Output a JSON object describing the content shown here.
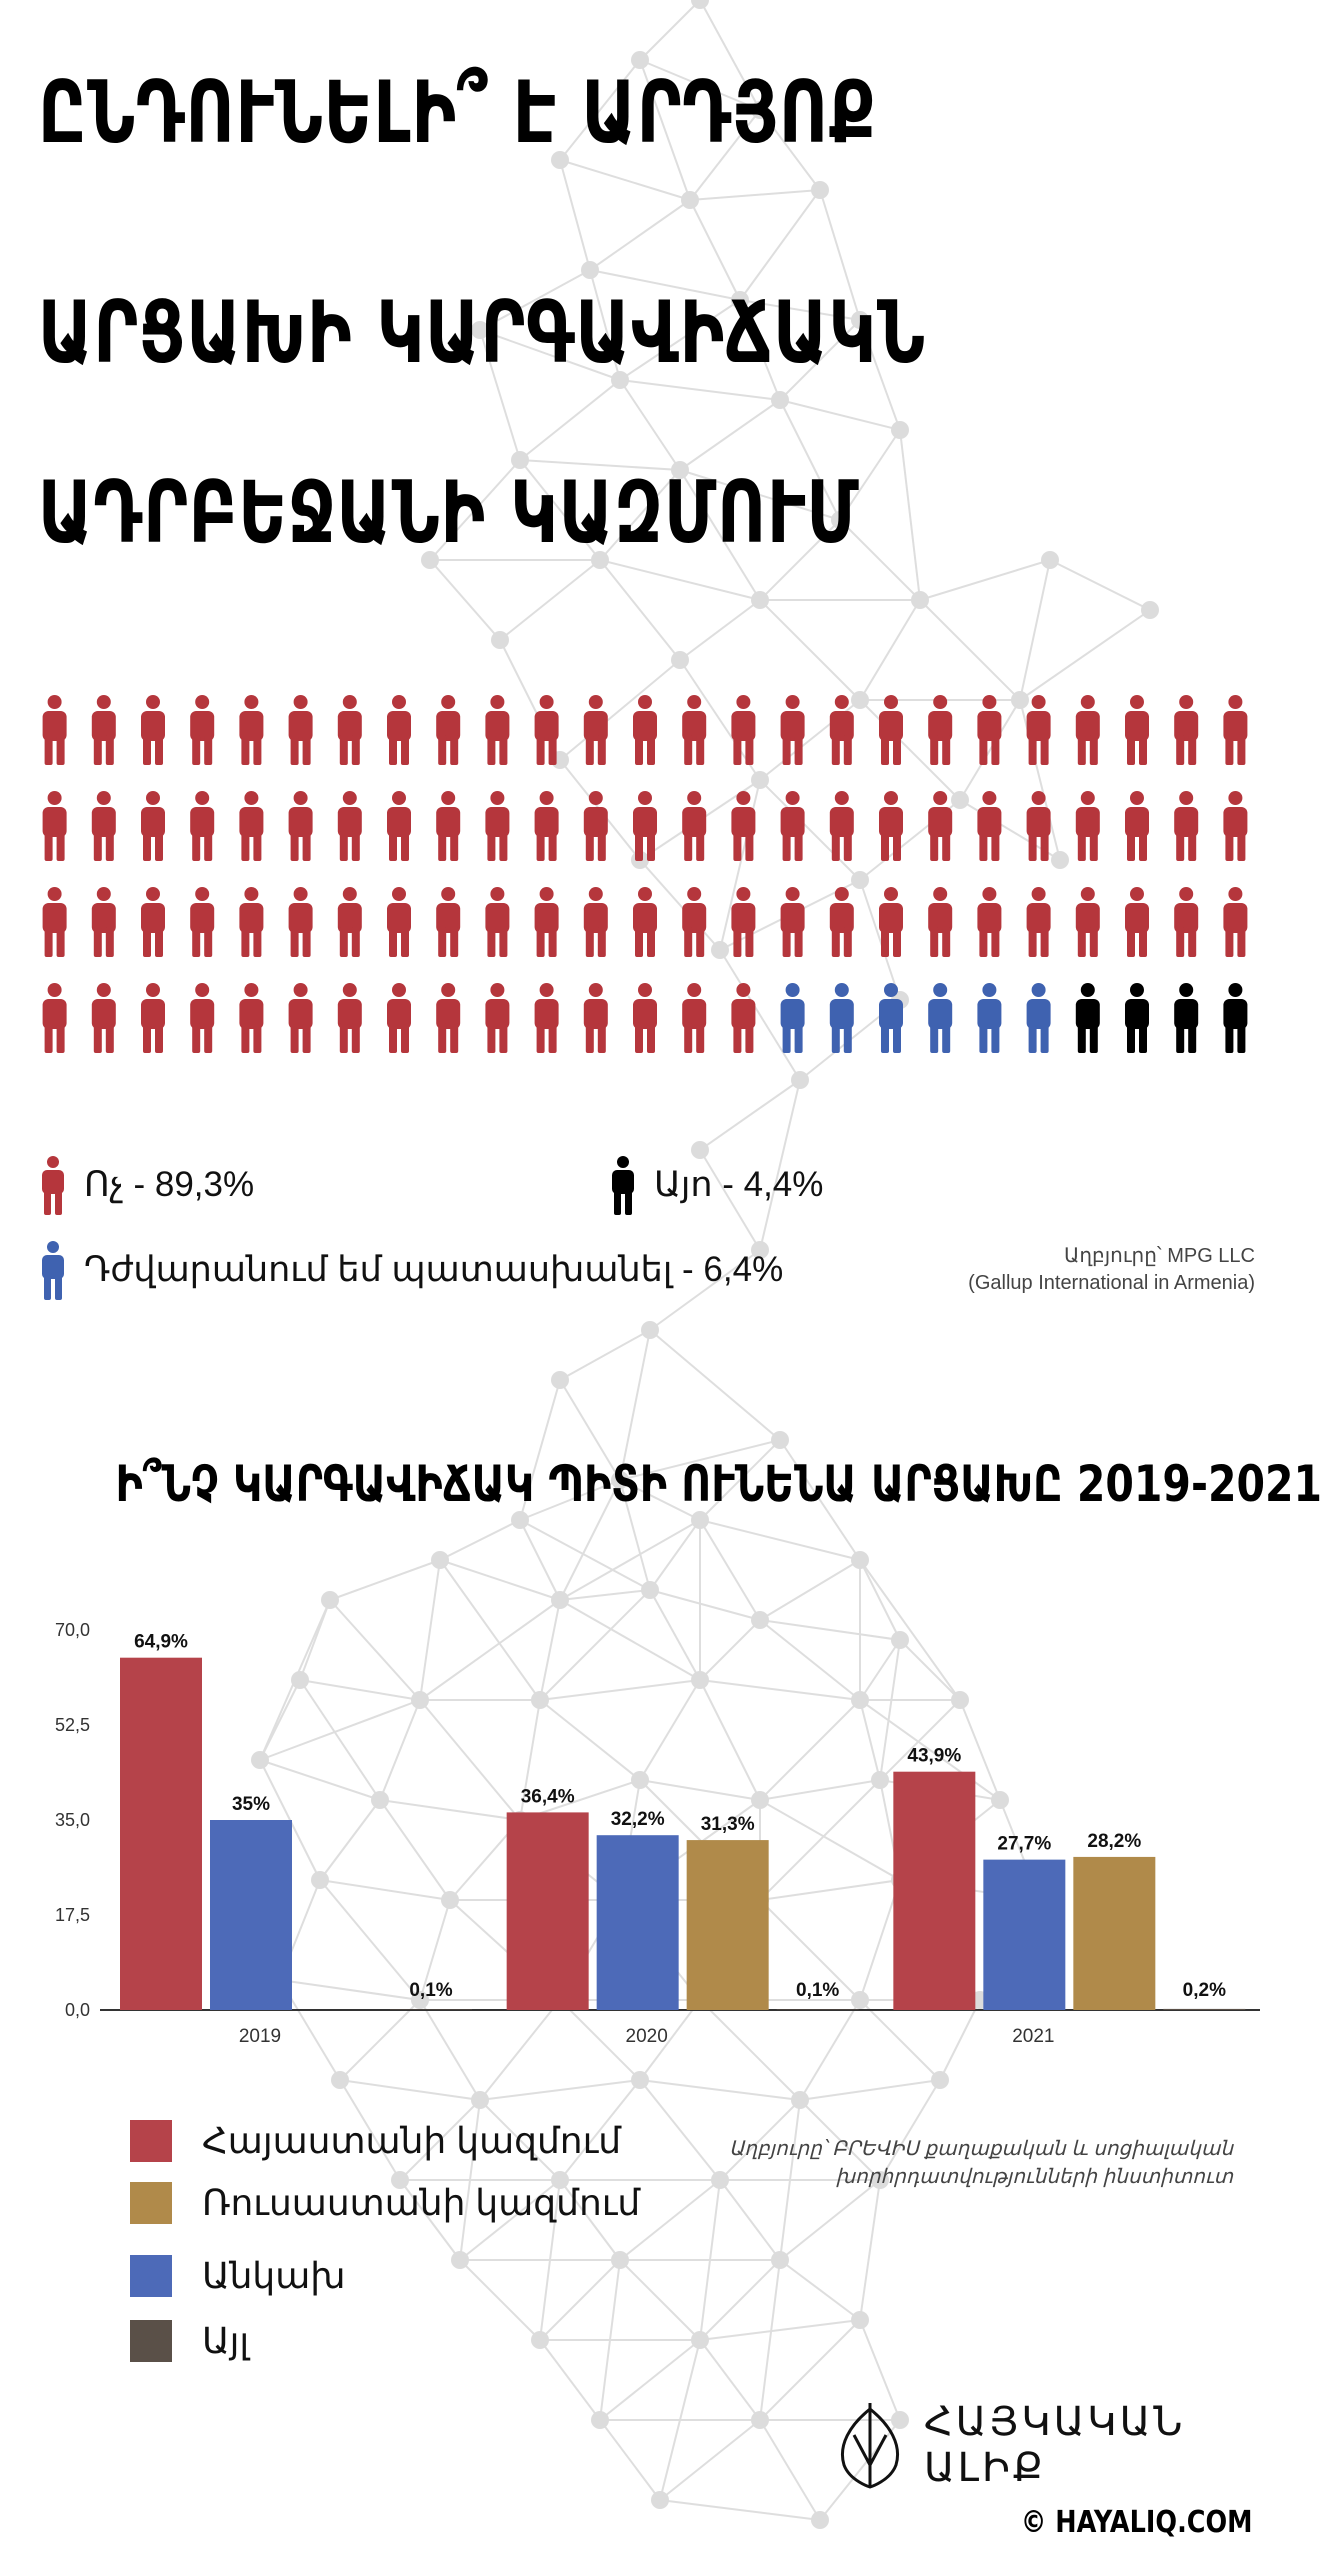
{
  "title": {
    "line1": "ԸՆԴՈՒՆԵԼԻ՞ Է ԱՐԴՅՈՔ",
    "line2": "ԱՐՑԱԽԻ ԿԱՐԳԱՎԻՃԱԿՆ",
    "line3": "ԱԴՐԲԵՋԱՆԻ ԿԱԶՄՈՒՄ"
  },
  "pictogram": {
    "total": 100,
    "counts": {
      "no": 90,
      "hard": 6,
      "yes": 4
    },
    "colors": {
      "no": "#b5363c",
      "hard": "#3f62b0",
      "yes": "#000000"
    }
  },
  "legend": {
    "no": "Ոչ - 89,3%",
    "yes": "Այո - 4,4%",
    "hard": "Դժվարանում եմ պատասխանել - 6,4%"
  },
  "source1": {
    "line1": "Աղբյուրը՝ MPG LLC",
    "line2": "(Gallup International in Armenia)"
  },
  "chart_title": "Ի՞ՆՉ ԿԱՐԳԱՎԻՃԱԿ ՊԻՏԻ ՈՒՆԵՆԱ ԱՐՑԱԽԸ 2019-2021",
  "chart_data": {
    "type": "bar",
    "categories": [
      "2019",
      "2020",
      "2021"
    ],
    "series": [
      {
        "name": "Հայաստանի կազմում",
        "color": "#b5434a",
        "values": [
          64.9,
          36.4,
          43.9
        ],
        "labels": [
          "64,9%",
          "36,4%",
          "43,9%"
        ]
      },
      {
        "name": "Անկախ",
        "color": "#4d6ab8",
        "values": [
          35.0,
          32.2,
          27.7
        ],
        "labels": [
          "35%",
          "32,2%",
          "27,7%"
        ]
      },
      {
        "name": "Ռուսաստանի կազմում",
        "color": "#b08a4a",
        "values": [
          null,
          31.3,
          28.2
        ],
        "labels": [
          "",
          "31,3%",
          "28,2%"
        ]
      },
      {
        "name": "Այլ",
        "color": "#5a5048",
        "values": [
          0.1,
          0.1,
          0.2
        ],
        "labels": [
          "0,1%",
          "0,1%",
          "0,2%"
        ]
      }
    ],
    "yticks": [
      "0,0",
      "17,5",
      "35,0",
      "52,5",
      "70,0"
    ],
    "ylim": [
      0,
      70
    ],
    "grid": false
  },
  "chart_legend": [
    {
      "label": "Հայաստանի կազմում",
      "color": "#b5434a"
    },
    {
      "label": "Ռուսաստանի կազմում",
      "color": "#b08a4a"
    },
    {
      "label": "Անկախ",
      "color": "#4d6ab8"
    },
    {
      "label": "Այլ",
      "color": "#5a5048"
    }
  ],
  "source2": {
    "line1": "Աղբյուրը՝ ԲՐԵՎԻՍ քաղաքական և սոցիալական",
    "line2": "խորհրդատվությունների ինստիտուտ"
  },
  "brand": {
    "name": "ՀԱՅԿԱԿԱՆ ԱԼԻՔ",
    "copyright": "© HAYALIQ.COM"
  }
}
